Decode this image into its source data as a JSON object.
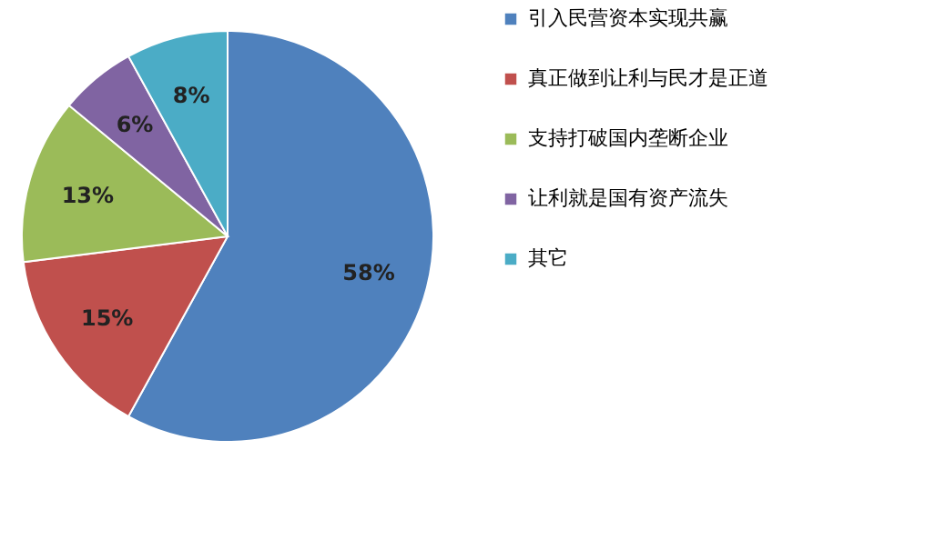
{
  "chart_data": {
    "type": "pie",
    "categories": [
      "引入民营资本实现共赢",
      "真正做到让利与民才是正道",
      "支持打破国内垄断企业",
      "让利就是国有资产流失",
      "其它"
    ],
    "values": [
      58,
      15,
      13,
      6,
      8
    ],
    "colors": [
      "#4f81bd",
      "#c0504d",
      "#9bbb59",
      "#8064a2",
      "#4bacc6"
    ],
    "value_labels": [
      "58%",
      "15%",
      "13%",
      "6%",
      "8%"
    ],
    "legend": "right"
  }
}
